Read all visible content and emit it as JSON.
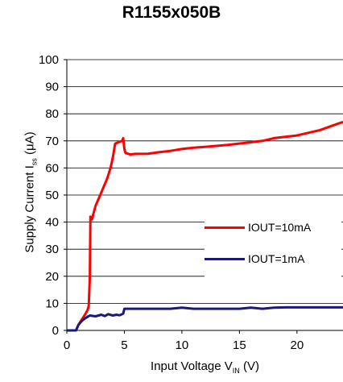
{
  "title": "R1155x050B",
  "chart_data": {
    "type": "line",
    "title": "R1155x050B",
    "xlabel_main": "Input Voltage V",
    "xlabel_sub": "IN",
    "xlabel_unit": " (V)",
    "ylabel_main": "Supply Current I",
    "ylabel_sub": "ss",
    "ylabel_unit": " (μA)",
    "xlim": [
      0,
      24
    ],
    "ylim": [
      0,
      100
    ],
    "x_ticks": [
      0,
      5,
      10,
      15,
      20
    ],
    "y_ticks": [
      0,
      10,
      20,
      30,
      40,
      50,
      60,
      70,
      80,
      90,
      100
    ],
    "grid": "horizontal",
    "legend": "right",
    "series": [
      {
        "name": "IOUT=10mA",
        "color": "#ff0000",
        "points": [
          [
            0,
            0
          ],
          [
            0.8,
            0
          ],
          [
            1.0,
            2
          ],
          [
            1.3,
            4
          ],
          [
            1.6,
            6
          ],
          [
            1.8,
            7.5
          ],
          [
            1.9,
            9
          ],
          [
            2.0,
            20
          ],
          [
            2.05,
            42
          ],
          [
            2.2,
            41
          ],
          [
            2.3,
            43
          ],
          [
            2.5,
            46
          ],
          [
            3.0,
            51
          ],
          [
            3.5,
            56
          ],
          [
            3.8,
            60
          ],
          [
            4.0,
            64
          ],
          [
            4.2,
            69
          ],
          [
            4.5,
            69.5
          ],
          [
            4.8,
            70
          ],
          [
            4.9,
            71
          ],
          [
            5.0,
            67
          ],
          [
            5.1,
            65.5
          ],
          [
            5.5,
            65
          ],
          [
            6.0,
            65.2
          ],
          [
            7,
            65.2
          ],
          [
            8,
            65.8
          ],
          [
            9,
            66.3
          ],
          [
            10,
            67
          ],
          [
            11,
            67.5
          ],
          [
            12,
            67.8
          ],
          [
            14,
            68.5
          ],
          [
            16,
            69.5
          ],
          [
            17,
            70
          ],
          [
            18,
            71
          ],
          [
            20,
            72
          ],
          [
            22,
            74
          ],
          [
            23,
            75.5
          ],
          [
            24,
            77
          ]
        ]
      },
      {
        "name": "IOUT=1mA",
        "color": "#1a1a7a",
        "points": [
          [
            0,
            0
          ],
          [
            0.8,
            0
          ],
          [
            1.0,
            2
          ],
          [
            1.3,
            3.5
          ],
          [
            1.6,
            4.5
          ],
          [
            1.8,
            5
          ],
          [
            2.0,
            5.5
          ],
          [
            2.5,
            5.2
          ],
          [
            3.0,
            5.8
          ],
          [
            3.3,
            5.3
          ],
          [
            3.6,
            6
          ],
          [
            4.0,
            5.5
          ],
          [
            4.3,
            5.8
          ],
          [
            4.6,
            5.6
          ],
          [
            4.9,
            6.2
          ],
          [
            5.0,
            8
          ],
          [
            6,
            8
          ],
          [
            7,
            8
          ],
          [
            8,
            8
          ],
          [
            9,
            8
          ],
          [
            10,
            8.4
          ],
          [
            11,
            8
          ],
          [
            12,
            8
          ],
          [
            13,
            8
          ],
          [
            14,
            8
          ],
          [
            15,
            8
          ],
          [
            16,
            8.4
          ],
          [
            17,
            8
          ],
          [
            18,
            8.4
          ],
          [
            19,
            8.5
          ],
          [
            20,
            8.5
          ],
          [
            22,
            8.5
          ],
          [
            24,
            8.5
          ]
        ]
      }
    ]
  }
}
